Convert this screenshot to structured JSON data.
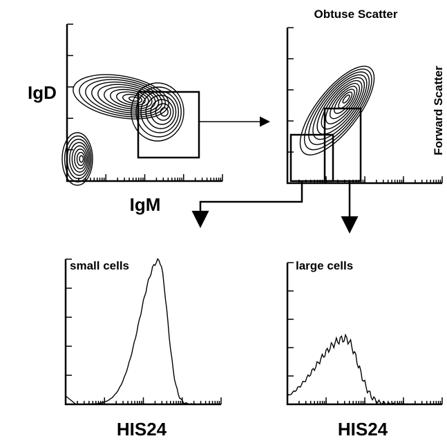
{
  "panels": [
    {
      "y_label": "IgD",
      "x_label": "IgM"
    },
    {
      "title": "Obtuse Scatter",
      "y_label": "Forward Scatter"
    },
    {
      "label": "small cells",
      "x_label": "HIS24"
    },
    {
      "label": "large cells",
      "x_label": "HIS24"
    }
  ]
}
